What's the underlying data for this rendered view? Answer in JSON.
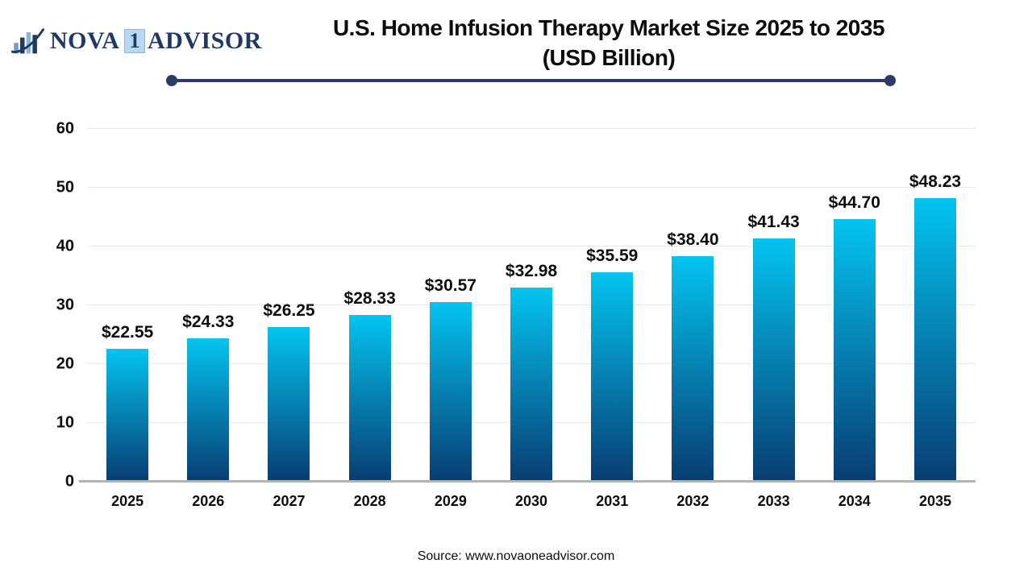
{
  "page": {
    "logo": {
      "nova": "NOVA",
      "one": "1",
      "advisor": "ADVISOR"
    },
    "source": "Source: www.novaoneadvisor.com",
    "theme": {
      "navy": "#2b3a68",
      "logo_navy": "#1f3864",
      "logo_badge": "#b9d8ee",
      "bar_top": "#04c4f0",
      "bar_bottom": "#083c72",
      "grid": "#e7e7e7",
      "axis": "#b3b3b3",
      "text": "#0d0d0d"
    }
  },
  "chart_data": {
    "type": "bar",
    "title": "U.S. Home Infusion Therapy Market Size 2025 to 2035",
    "subtitle": "(USD Billion)",
    "categories": [
      "2025",
      "2026",
      "2027",
      "2028",
      "2029",
      "2030",
      "2031",
      "2032",
      "2033",
      "2034",
      "2035"
    ],
    "values": [
      22.55,
      24.33,
      26.25,
      28.33,
      30.57,
      32.98,
      35.59,
      38.4,
      41.43,
      44.7,
      48.23
    ],
    "labels": [
      "$22.55",
      "$24.33",
      "$26.25",
      "$28.33",
      "$30.57",
      "$32.98",
      "$35.59",
      "$38.40",
      "$41.43",
      "$44.70",
      "$48.23"
    ],
    "xlabel": "",
    "ylabel": "",
    "ylim": [
      0,
      60
    ],
    "yticks": [
      0,
      10,
      20,
      30,
      40,
      50,
      60
    ],
    "grid": true,
    "legend": "none"
  }
}
